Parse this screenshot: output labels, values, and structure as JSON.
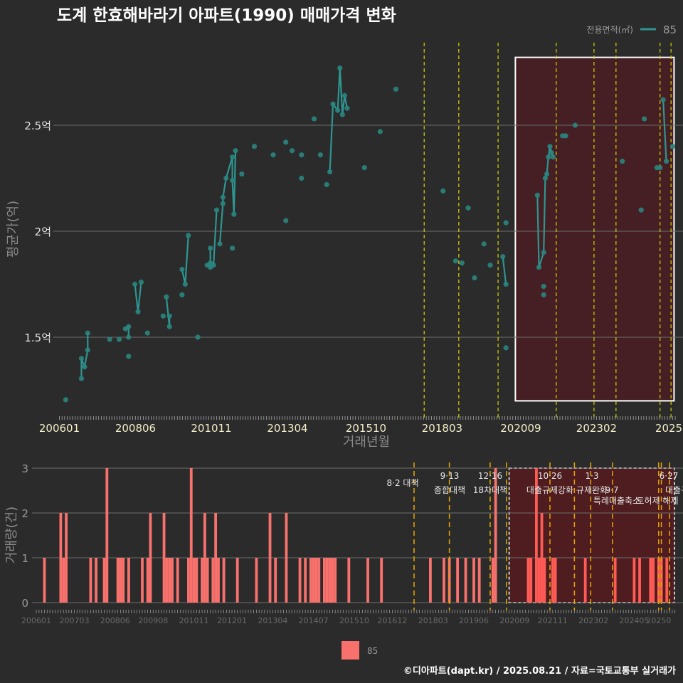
{
  "chart_data": [
    {
      "type": "line",
      "title": "도계 한효해바라기 아파트(1990) 매매가격 변화",
      "xlabel": "거래년월",
      "ylabel": "평균가(억)",
      "ylim": [
        1.14,
        2.89
      ],
      "xlim_year": [
        2006.0,
        2025.6
      ],
      "y_ticks": [
        {
          "v": 1.5,
          "label": "1.5억"
        },
        {
          "v": 2.0,
          "label": "2억"
        },
        {
          "v": 2.5,
          "label": "2.5억"
        }
      ],
      "x_ticks": [
        {
          "v": 2006.0,
          "label": "200601"
        },
        {
          "v": 2008.42,
          "label": "200806"
        },
        {
          "v": 2010.83,
          "label": "201011"
        },
        {
          "v": 2013.25,
          "label": "201304"
        },
        {
          "v": 2015.75,
          "label": "201510"
        },
        {
          "v": 2018.17,
          "label": "201803"
        },
        {
          "v": 2020.67,
          "label": "202009"
        },
        {
          "v": 2023.08,
          "label": "202302"
        },
        {
          "v": 2025.5,
          "label": "2025"
        }
      ],
      "legend": {
        "title": "전용면적(㎡)",
        "entries": [
          "85"
        ],
        "placement": "top-right"
      },
      "series": [
        {
          "name": "85",
          "color": "#2e9590",
          "points": [
            {
              "x": 2006.2,
              "y": 1.205,
              "g": 0
            },
            {
              "x": 2006.7,
              "y": 1.305,
              "g": 1
            },
            {
              "x": 2006.7,
              "y": 1.4,
              "g": 1
            },
            {
              "x": 2006.8,
              "y": 1.36,
              "g": 1
            },
            {
              "x": 2006.9,
              "y": 1.44,
              "g": 1
            },
            {
              "x": 2006.9,
              "y": 1.52,
              "g": 1
            },
            {
              "x": 2007.6,
              "y": 1.49,
              "g": 0
            },
            {
              "x": 2007.9,
              "y": 1.49,
              "g": 0
            },
            {
              "x": 2008.1,
              "y": 1.54,
              "g": 2
            },
            {
              "x": 2008.2,
              "y": 1.55,
              "g": 2
            },
            {
              "x": 2008.2,
              "y": 1.5,
              "g": 2
            },
            {
              "x": 2008.2,
              "y": 1.41,
              "g": 0
            },
            {
              "x": 2008.4,
              "y": 1.75,
              "g": 3
            },
            {
              "x": 2008.5,
              "y": 1.62,
              "g": 3
            },
            {
              "x": 2008.6,
              "y": 1.76,
              "g": 3
            },
            {
              "x": 2008.8,
              "y": 1.52,
              "g": 0
            },
            {
              "x": 2009.3,
              "y": 1.6,
              "g": 0
            },
            {
              "x": 2009.4,
              "y": 1.69,
              "g": 4
            },
            {
              "x": 2009.5,
              "y": 1.55,
              "g": 4
            },
            {
              "x": 2009.5,
              "y": 1.6,
              "g": 4
            },
            {
              "x": 2009.9,
              "y": 1.7,
              "g": 0
            },
            {
              "x": 2009.9,
              "y": 1.82,
              "g": 5
            },
            {
              "x": 2010.0,
              "y": 1.75,
              "g": 5
            },
            {
              "x": 2010.1,
              "y": 1.98,
              "g": 5
            },
            {
              "x": 2010.4,
              "y": 1.5,
              "g": 0
            },
            {
              "x": 2010.7,
              "y": 1.84,
              "g": 6
            },
            {
              "x": 2010.8,
              "y": 1.83,
              "g": 6
            },
            {
              "x": 2010.8,
              "y": 1.92,
              "g": 6
            },
            {
              "x": 2010.8,
              "y": 1.85,
              "g": 6
            },
            {
              "x": 2010.9,
              "y": 1.84,
              "g": 6
            },
            {
              "x": 2011.0,
              "y": 2.1,
              "g": 6
            },
            {
              "x": 2011.1,
              "y": 1.94,
              "g": 7
            },
            {
              "x": 2011.2,
              "y": 2.13,
              "g": 7
            },
            {
              "x": 2011.2,
              "y": 2.16,
              "g": 7
            },
            {
              "x": 2011.3,
              "y": 2.25,
              "g": 7
            },
            {
              "x": 2011.5,
              "y": 2.35,
              "g": 7
            },
            {
              "x": 2011.5,
              "y": 2.24,
              "g": 7
            },
            {
              "x": 2011.55,
              "y": 2.08,
              "g": 7
            },
            {
              "x": 2011.6,
              "y": 2.38,
              "g": 7
            },
            {
              "x": 2011.5,
              "y": 1.92,
              "g": 0
            },
            {
              "x": 2011.8,
              "y": 2.27,
              "g": 0
            },
            {
              "x": 2012.2,
              "y": 2.4,
              "g": 0
            },
            {
              "x": 2012.8,
              "y": 2.36,
              "g": 0
            },
            {
              "x": 2013.2,
              "y": 2.42,
              "g": 0
            },
            {
              "x": 2013.2,
              "y": 2.05,
              "g": 0
            },
            {
              "x": 2013.4,
              "y": 2.38,
              "g": 0
            },
            {
              "x": 2013.7,
              "y": 2.36,
              "g": 0
            },
            {
              "x": 2013.7,
              "y": 2.25,
              "g": 0
            },
            {
              "x": 2014.1,
              "y": 2.53,
              "g": 0
            },
            {
              "x": 2014.3,
              "y": 2.36,
              "g": 0
            },
            {
              "x": 2014.5,
              "y": 2.22,
              "g": 0
            },
            {
              "x": 2014.6,
              "y": 2.28,
              "g": 8
            },
            {
              "x": 2014.7,
              "y": 2.6,
              "g": 8
            },
            {
              "x": 2014.85,
              "y": 2.57,
              "g": 8
            },
            {
              "x": 2014.92,
              "y": 2.77,
              "g": 8
            },
            {
              "x": 2015.0,
              "y": 2.55,
              "g": 8
            },
            {
              "x": 2015.07,
              "y": 2.64,
              "g": 8
            },
            {
              "x": 2015.15,
              "y": 2.58,
              "g": 8
            },
            {
              "x": 2015.7,
              "y": 2.3,
              "g": 0
            },
            {
              "x": 2016.2,
              "y": 2.47,
              "g": 0
            },
            {
              "x": 2016.7,
              "y": 2.67,
              "g": 0
            },
            {
              "x": 2018.2,
              "y": 2.19,
              "g": 0
            },
            {
              "x": 2018.6,
              "y": 1.86,
              "g": 0
            },
            {
              "x": 2018.8,
              "y": 1.85,
              "g": 0
            },
            {
              "x": 2019.0,
              "y": 2.11,
              "g": 0
            },
            {
              "x": 2019.2,
              "y": 1.78,
              "g": 0
            },
            {
              "x": 2019.5,
              "y": 1.94,
              "g": 0
            },
            {
              "x": 2019.7,
              "y": 1.84,
              "g": 0
            },
            {
              "x": 2020.1,
              "y": 1.88,
              "g": 9
            },
            {
              "x": 2020.2,
              "y": 1.75,
              "g": 9
            },
            {
              "x": 2020.2,
              "y": 2.04,
              "g": 0
            },
            {
              "x": 2020.2,
              "y": 1.45,
              "g": 0
            },
            {
              "x": 2021.2,
              "y": 2.17,
              "g": 10
            },
            {
              "x": 2021.25,
              "y": 1.83,
              "g": 10
            },
            {
              "x": 2021.4,
              "y": 1.74,
              "g": 0
            },
            {
              "x": 2021.4,
              "y": 1.7,
              "g": 0
            },
            {
              "x": 2021.4,
              "y": 1.9,
              "g": 10
            },
            {
              "x": 2021.45,
              "y": 2.25,
              "g": 10
            },
            {
              "x": 2021.5,
              "y": 2.27,
              "g": 10
            },
            {
              "x": 2021.55,
              "y": 2.35,
              "g": 10
            },
            {
              "x": 2021.6,
              "y": 2.4,
              "g": 10
            },
            {
              "x": 2021.65,
              "y": 2.37,
              "g": 10
            },
            {
              "x": 2021.7,
              "y": 2.35,
              "g": 10
            },
            {
              "x": 2022.0,
              "y": 2.45,
              "g": 0
            },
            {
              "x": 2022.1,
              "y": 2.45,
              "g": 0
            },
            {
              "x": 2022.4,
              "y": 2.5,
              "g": 0
            },
            {
              "x": 2023.9,
              "y": 2.33,
              "g": 0
            },
            {
              "x": 2024.5,
              "y": 2.1,
              "g": 0
            },
            {
              "x": 2024.6,
              "y": 2.53,
              "g": 0
            },
            {
              "x": 2025.0,
              "y": 2.3,
              "g": 0
            },
            {
              "x": 2025.1,
              "y": 2.3,
              "g": 0
            },
            {
              "x": 2025.2,
              "y": 2.62,
              "g": 11
            },
            {
              "x": 2025.3,
              "y": 2.33,
              "g": 11
            },
            {
              "x": 2025.5,
              "y": 2.4,
              "g": 0
            }
          ]
        }
      ],
      "highlight_range": {
        "from": 2020.5,
        "to": 2025.5,
        "ymin": 1.2,
        "ymax": 2.82
      },
      "policy_lines": [
        2017.6,
        2018.7,
        2019.95,
        2021.8,
        2023.0,
        2023.7,
        2025.1,
        2025.45
      ]
    },
    {
      "type": "bar",
      "ylabel": "거래량(건)",
      "ylim": [
        0,
        3
      ],
      "y_ticks": [
        "0",
        "1",
        "2",
        "3"
      ],
      "x_ticks": [
        "200601",
        "200703",
        "200806",
        "200908",
        "201011",
        "201201",
        "201304",
        "201407",
        "201510",
        "201612",
        "201803",
        "201906",
        "202009",
        "202111",
        "202302",
        "202405",
        "20250"
      ],
      "legend": {
        "entries": [
          "85"
        ],
        "placement": "bottom"
      },
      "bars": [
        [
          "200604",
          1
        ],
        [
          "200610",
          2
        ],
        [
          "200611",
          1
        ],
        [
          "200612",
          2
        ],
        [
          "200709",
          1
        ],
        [
          "200711",
          1
        ],
        [
          "200802",
          1
        ],
        [
          "200803",
          3
        ],
        [
          "200807",
          1
        ],
        [
          "200808",
          1
        ],
        [
          "200809",
          1
        ],
        [
          "200811",
          1
        ],
        [
          "200904",
          1
        ],
        [
          "200906",
          1
        ],
        [
          "200907",
          2
        ],
        [
          "200912",
          2
        ],
        [
          "201001",
          1
        ],
        [
          "201002",
          1
        ],
        [
          "201003",
          1
        ],
        [
          "201005",
          1
        ],
        [
          "201009",
          1
        ],
        [
          "201010",
          3
        ],
        [
          "201011",
          1
        ],
        [
          "201012",
          1
        ],
        [
          "201102",
          1
        ],
        [
          "201103",
          2
        ],
        [
          "201104",
          1
        ],
        [
          "201106",
          1
        ],
        [
          "201107",
          2
        ],
        [
          "201108",
          1
        ],
        [
          "201110",
          1
        ],
        [
          "201203",
          1
        ],
        [
          "201210",
          1
        ],
        [
          "201303",
          2
        ],
        [
          "201305",
          1
        ],
        [
          "201309",
          2
        ],
        [
          "201402",
          1
        ],
        [
          "201404",
          1
        ],
        [
          "201406",
          1
        ],
        [
          "201407",
          1
        ],
        [
          "201408",
          1
        ],
        [
          "201409",
          1
        ],
        [
          "201411",
          1
        ],
        [
          "201412",
          1
        ],
        [
          "201501",
          1
        ],
        [
          "201502",
          1
        ],
        [
          "201503",
          1
        ],
        [
          "201508",
          1
        ],
        [
          "201603",
          1
        ],
        [
          "201608",
          1
        ],
        [
          "201802",
          1
        ],
        [
          "201807",
          1
        ],
        [
          "201809",
          1
        ],
        [
          "201812",
          1
        ],
        [
          "201903",
          1
        ],
        [
          "201906",
          1
        ],
        [
          "201908",
          1
        ],
        [
          "202001",
          1
        ],
        [
          "202002",
          3
        ],
        [
          "202102",
          1
        ],
        [
          "202103",
          1
        ],
        [
          "202105",
          3
        ],
        [
          "202106",
          1
        ],
        [
          "202107",
          2
        ],
        [
          "202108",
          1
        ],
        [
          "202111",
          1
        ],
        [
          "202112",
          1
        ],
        [
          "202211",
          1
        ],
        [
          "202310",
          1
        ],
        [
          "202405",
          1
        ],
        [
          "202407",
          1
        ],
        [
          "202411",
          1
        ],
        [
          "202412",
          1
        ],
        [
          "202502",
          1
        ],
        [
          "202503",
          1
        ],
        [
          "202505",
          1
        ]
      ],
      "highlight_range": {
        "from": "202007",
        "to": "202507"
      },
      "policies": [
        {
          "ym": "201708",
          "date": "",
          "name": "8·2 대책"
        },
        {
          "ym": "201809",
          "date": "9·13",
          "name": "종합대책"
        },
        {
          "ym": "201912",
          "date": "12·16",
          "name": "18차대책"
        },
        {
          "ym": "202006",
          "date": "",
          "name": ""
        },
        {
          "ym": "202110",
          "date": "10·26",
          "name": "대출규제강화"
        },
        {
          "ym": "202207",
          "date": "",
          "name": ""
        },
        {
          "ym": "202301",
          "date": "1·3",
          "name": "규제완화"
        },
        {
          "ym": "202309",
          "date": "9·7",
          "name": "특례대출축소"
        },
        {
          "ym": "202502",
          "date": "",
          "name": "토허제 해제"
        },
        {
          "ym": "202503",
          "date": "",
          "name": ""
        },
        {
          "ym": "202506",
          "date": "6·27",
          "name": "대출규"
        }
      ]
    }
  ],
  "footer": "©디아파트(dapt.kr) / 2025.08.21 / 자료=국토교통부 실거래가",
  "colors": {
    "background": "#2b2b2b",
    "line": "#2e9590",
    "bar": "#f8716c",
    "policy": "#e0a800",
    "highlight": "#5a1c1e"
  }
}
